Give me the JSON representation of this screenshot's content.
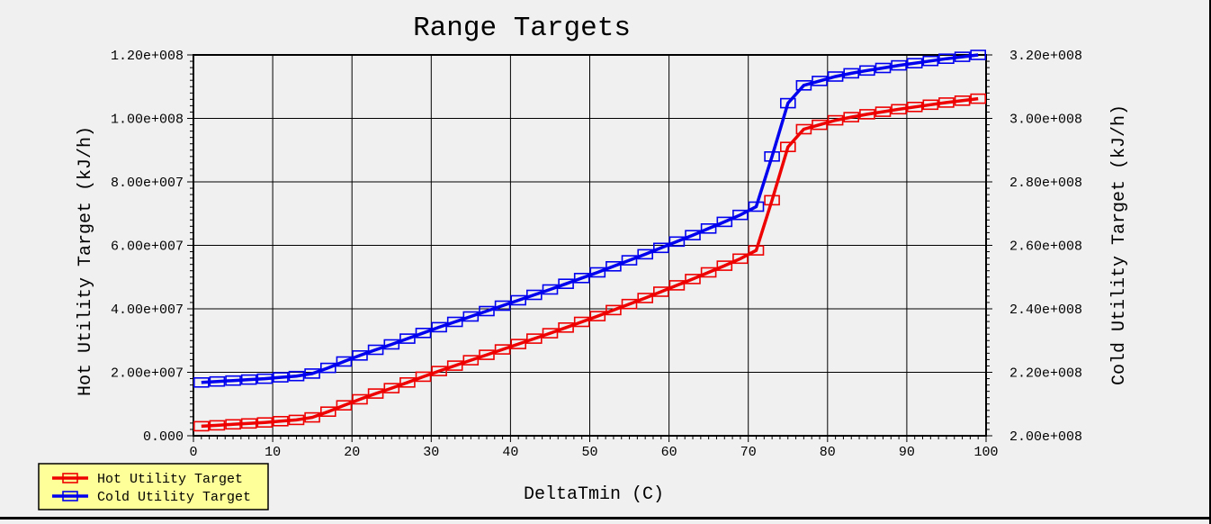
{
  "window": {
    "background_color": "#f0f0f0",
    "border_color": "#000000"
  },
  "chart_data": {
    "type": "line",
    "title": "Range Targets",
    "xlabel": "DeltaTmin (C)",
    "ylabel_left": "Hot Utility Target (kJ/h)",
    "ylabel_right": "Cold Utility Target (kJ/h)",
    "grid": true,
    "x_axis": {
      "range": [
        0,
        100
      ],
      "tick_values": [
        0,
        10,
        20,
        30,
        40,
        50,
        60,
        70,
        80,
        90,
        100
      ],
      "tick_labels": [
        "0",
        "10",
        "20",
        "30",
        "40",
        "50",
        "60",
        "70",
        "80",
        "90",
        "100"
      ],
      "minor_tick_step": 1
    },
    "left_axis": {
      "range": [
        0,
        120000000.0
      ],
      "tick_values": [
        0,
        20000000.0,
        40000000.0,
        60000000.0,
        80000000.0,
        100000000.0,
        120000000.0
      ],
      "tick_labels": [
        "0.000",
        "2.00e+007",
        "4.00e+007",
        "6.00e+007",
        "8.00e+007",
        "1.00e+008",
        "1.20e+008"
      ],
      "minor_tick_step": 2000000.0
    },
    "right_axis": {
      "range": [
        200000000.0,
        320000000.0
      ],
      "tick_values": [
        200000000.0,
        220000000.0,
        240000000.0,
        260000000.0,
        280000000.0,
        300000000.0,
        320000000.0
      ],
      "tick_labels": [
        "2.00e+008",
        "2.20e+008",
        "2.40e+008",
        "2.60e+008",
        "2.80e+008",
        "3.00e+008",
        "3.20e+008"
      ],
      "minor_tick_step": 2000000.0
    },
    "legend": {
      "position": "bottom-left",
      "background": "#ffff99"
    },
    "x": [
      1,
      3,
      5,
      7,
      9,
      11,
      13,
      15,
      17,
      19,
      21,
      23,
      25,
      27,
      29,
      31,
      33,
      35,
      37,
      39,
      41,
      43,
      45,
      47,
      49,
      51,
      53,
      55,
      57,
      59,
      61,
      63,
      65,
      67,
      69,
      71,
      73,
      75,
      77,
      79,
      81,
      83,
      85,
      87,
      89,
      91,
      93,
      95,
      97,
      99
    ],
    "series": [
      {
        "name": "Hot Utility Target",
        "axis": "left",
        "color": "#ee0000",
        "marker": "open-rect",
        "values": [
          3000000.0,
          3300000.0,
          3600000.0,
          3900000.0,
          4200000.0,
          4600000.0,
          5000000.0,
          5800000.0,
          7600000.0,
          9600000.0,
          11500000.0,
          13300000.0,
          15000000.0,
          16800000.0,
          18600000.0,
          20400000.0,
          22100000.0,
          23800000.0,
          25500000.0,
          27200000.0,
          28900000.0,
          30600000.0,
          32300000.0,
          34100000.0,
          35900000.0,
          37700000.0,
          39600000.0,
          41500000.0,
          43400000.0,
          45400000.0,
          47400000.0,
          49400000.0,
          51500000.0,
          53600000.0,
          55800000.0,
          58400000.0,
          74200000.0,
          91000000.0,
          96600000.0,
          98000000.0,
          99400000.0,
          100400000.0,
          101300000.0,
          102100000.0,
          102900000.0,
          103600000.0,
          104300000.0,
          105000000.0,
          105600000.0,
          106200000.0
        ]
      },
      {
        "name": "Cold Utility Target",
        "axis": "right",
        "color": "#0000ee",
        "marker": "open-rect",
        "values": [
          216800000.0,
          217100000.0,
          217400000.0,
          217700000.0,
          218000000.0,
          218400000.0,
          218800000.0,
          219600000.0,
          221400000.0,
          223400000.0,
          225300000.0,
          227100000.0,
          228800000.0,
          230600000.0,
          232400000.0,
          234200000.0,
          235900000.0,
          237600000.0,
          239300000.0,
          241000000.0,
          242700000.0,
          244400000.0,
          246100000.0,
          247900000.0,
          249700000.0,
          251500000.0,
          253400000.0,
          255300000.0,
          257200000.0,
          259200000.0,
          261200000.0,
          263200000.0,
          265300000.0,
          267400000.0,
          269600000.0,
          272200000.0,
          288000000.0,
          304800000.0,
          310400000.0,
          311800000.0,
          313200000.0,
          314200000.0,
          315100000.0,
          315900000.0,
          316700000.0,
          317400000.0,
          318100000.0,
          318800000.0,
          319400000.0,
          320000000.0
        ]
      }
    ]
  }
}
